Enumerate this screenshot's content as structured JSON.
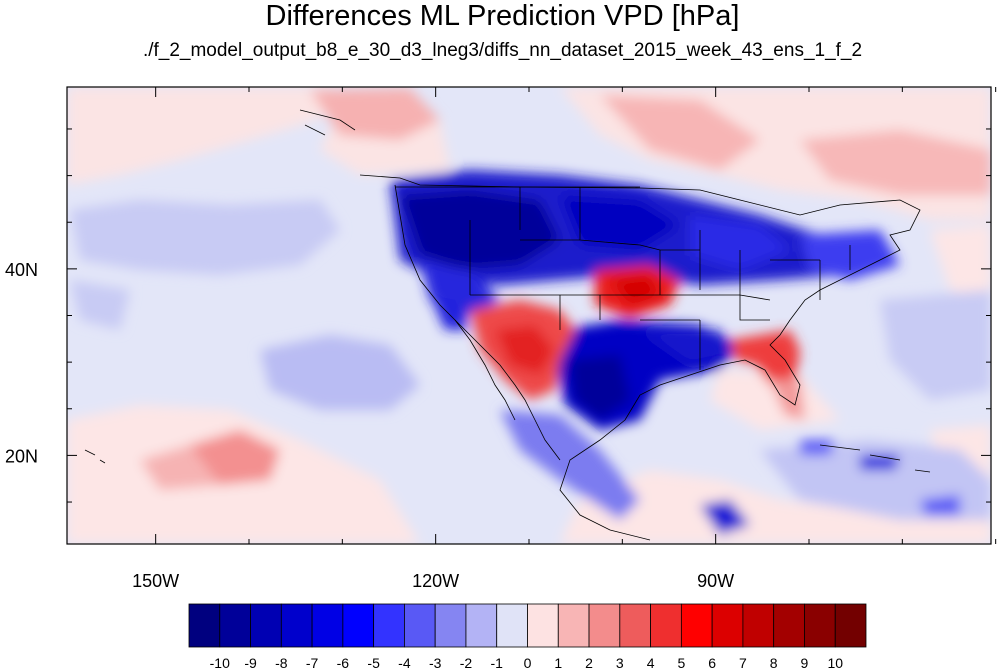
{
  "title": "Differences ML Prediction VPD [hPa]",
  "subtitle": "./f_2_model_output_b8_e_30_d3_lneg3/diffs_nn_dataset_2015_week_43_ens_1_f_2",
  "map": {
    "lon_range": [
      -159.5,
      -60.5
    ],
    "lat_range": [
      10.5,
      59.5
    ],
    "lon_ticks": [
      {
        "value": -150,
        "label": "150W"
      },
      {
        "value": -120,
        "label": "120W"
      },
      {
        "value": -90,
        "label": "90W"
      }
    ],
    "lat_ticks": [
      {
        "value": 40,
        "label": "40N"
      },
      {
        "value": 20,
        "label": "20N"
      }
    ]
  },
  "colorbar": {
    "labels": [
      "-10",
      "-9",
      "-8",
      "-7",
      "-6",
      "-5",
      "-4",
      "-3",
      "-2",
      "-1",
      "0",
      "1",
      "2",
      "3",
      "4",
      "5",
      "6",
      "7",
      "8",
      "9",
      "10"
    ],
    "colors": [
      "#00007f",
      "#000099",
      "#0000b3",
      "#0000cc",
      "#0000e5",
      "#0000ff",
      "#3333ff",
      "#5959f5",
      "#8585f2",
      "#b3b3f5",
      "#e0e3f7",
      "#fde2e2",
      "#f8b5b5",
      "#f38c8c",
      "#ee5c5c",
      "#ef2f2f",
      "#ff0000",
      "#dc0000",
      "#c00000",
      "#a30000",
      "#8a0000",
      "#730000"
    ]
  }
}
